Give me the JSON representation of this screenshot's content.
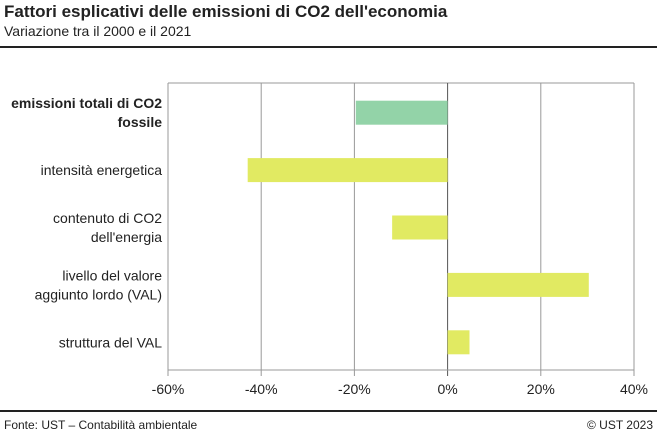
{
  "title": "Fattori esplicativi delle emissioni di CO2 dell'economia",
  "subtitle": "Variazione tra il 2000 e il 2021",
  "source": "Fonte: UST – Contabilità ambientale",
  "copyright": "© UST 2023",
  "chart_data": {
    "type": "bar",
    "orientation": "horizontal",
    "categories": [
      [
        "emissioni totali di CO2",
        "fossile"
      ],
      [
        "intensità energetica"
      ],
      [
        "contenuto di CO2",
        "dell'energia"
      ],
      [
        "livello del valore",
        "aggiunto lordo (VAL)"
      ],
      [
        "struttura del VAL"
      ]
    ],
    "category_bold": [
      true,
      false,
      false,
      false,
      false
    ],
    "values": [
      -19.7,
      -42.9,
      -11.9,
      30.3,
      4.7
    ],
    "colors": [
      "#93d3a8",
      "#e1ea62",
      "#e1ea62",
      "#e1ea62",
      "#e1ea62"
    ],
    "xlim": [
      -60,
      40
    ],
    "xticks": [
      "-60%",
      "-40%",
      "-20%",
      "0%",
      "20%",
      "40%"
    ],
    "xtick_values": [
      -60,
      -40,
      -20,
      0,
      20,
      40
    ],
    "grid": true
  }
}
